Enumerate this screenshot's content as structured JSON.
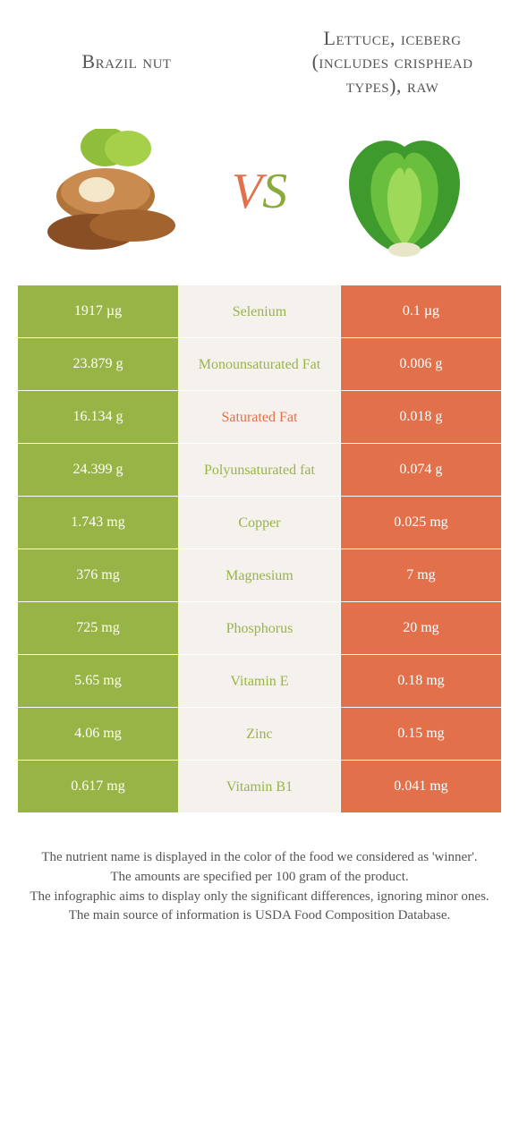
{
  "foods": {
    "left": {
      "title": "Brazil nut",
      "color": "#99b446"
    },
    "right": {
      "title": "Lettuce, iceberg (includes crisphead types), raw",
      "color": "#e2704a"
    }
  },
  "vs": {
    "v": "V",
    "s": "S"
  },
  "table": {
    "left_bg": "#99b446",
    "right_bg": "#e2704a",
    "mid_bg": "#f5f2ed",
    "left_text": "#ffffff",
    "right_text": "#ffffff",
    "rows": [
      {
        "left": "1917 µg",
        "label": "Selenium",
        "right": "0.1 µg",
        "winner": "left"
      },
      {
        "left": "23.879 g",
        "label": "Monounsaturated Fat",
        "right": "0.006 g",
        "winner": "left"
      },
      {
        "left": "16.134 g",
        "label": "Saturated Fat",
        "right": "0.018 g",
        "winner": "right"
      },
      {
        "left": "24.399 g",
        "label": "Polyunsaturated fat",
        "right": "0.074 g",
        "winner": "left"
      },
      {
        "left": "1.743 mg",
        "label": "Copper",
        "right": "0.025 mg",
        "winner": "left"
      },
      {
        "left": "376 mg",
        "label": "Magnesium",
        "right": "7 mg",
        "winner": "left"
      },
      {
        "left": "725 mg",
        "label": "Phosphorus",
        "right": "20 mg",
        "winner": "left"
      },
      {
        "left": "5.65 mg",
        "label": "Vitamin E",
        "right": "0.18 mg",
        "winner": "left"
      },
      {
        "left": "4.06 mg",
        "label": "Zinc",
        "right": "0.15 mg",
        "winner": "left"
      },
      {
        "left": "0.617 mg",
        "label": "Vitamin B1",
        "right": "0.041 mg",
        "winner": "left"
      }
    ]
  },
  "footer": {
    "l1": "The nutrient name is displayed in the color of the food we considered as 'winner'.",
    "l2": "The amounts are specified per 100 gram of the product.",
    "l3": "The infographic aims to display only the significant differences, ignoring minor ones.",
    "l4": "The main source of information is USDA Food Composition Database."
  }
}
